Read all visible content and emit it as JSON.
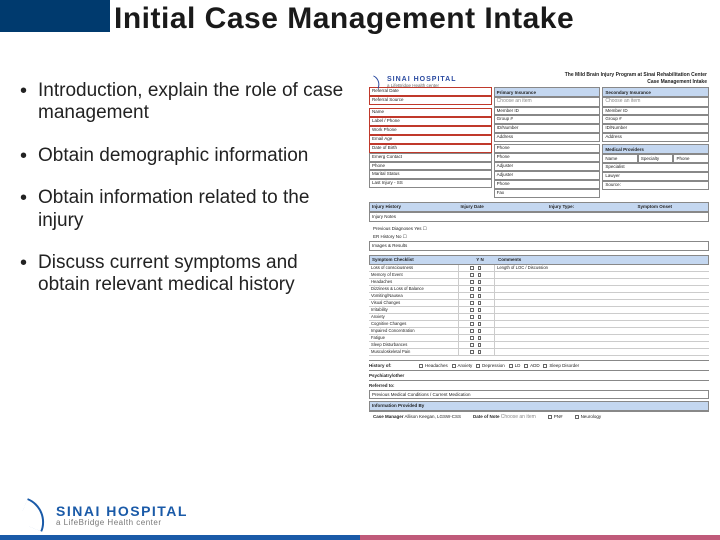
{
  "title": "Initial Case Management Intake",
  "bullets": [
    "Introduction, explain the role of case management",
    "Obtain demographic information",
    "Obtain information related to the injury",
    "Discuss current symptoms and obtain relevant medical history"
  ],
  "form": {
    "logo_name": "SINAI HOSPITAL",
    "logo_sub": "a LifeBridge Health center",
    "program_line": "The Mild Brain Injury Program at Sinai Rehabilitation Center",
    "program_title": "Case Management Intake",
    "left_fields": [
      "Referral Date",
      "Referral Source",
      "Name",
      "Label / Phone",
      "Work Phone",
      "Email                                   Age",
      "Date of Birth",
      "Emerg Contact",
      "Phone",
      "Marital Status",
      "Last Injury - SS"
    ],
    "primary_hdr": "Primary Insurance",
    "secondary_hdr": "Secondary Insurance",
    "ins_items": [
      "Choose an item",
      "Choose an item"
    ],
    "ins_fields": [
      "Member ID",
      "Group #",
      "ID/Number",
      "Address"
    ],
    "providers_hdr": "Medical Providers",
    "prov_cols": [
      "Name",
      "Specialty",
      "Phone"
    ],
    "prov_rows": [
      "Specialist",
      "Lawyer",
      "Source:"
    ],
    "other_fields": [
      "Phone",
      "Phone",
      "Adjuster",
      "Adjuster",
      "Phone",
      "Fax"
    ],
    "injury_bar": [
      "Injury History",
      "Injury Date",
      "Injury Type:",
      "Symptom Onset"
    ],
    "injury_notes": "Injury Notes",
    "loc_label": "Previous Diagnoses   Yes ☐",
    "loc_line2": "ER History                No ☐",
    "loc_line3": "Images & Results",
    "sym_header": [
      "Symptom Checklist",
      "Y    N",
      "Comments"
    ],
    "symptoms": [
      {
        "l": "Loss of consciousness",
        "n": "Length of LOC / Discussion"
      },
      {
        "l": "Memory of Event",
        "n": ""
      },
      {
        "l": "Headaches",
        "n": ""
      },
      {
        "l": "Dizziness & Loss of Balance",
        "n": ""
      },
      {
        "l": "Vomiting/Nausea",
        "n": ""
      },
      {
        "l": "Visual Changes",
        "n": ""
      },
      {
        "l": "Irritability",
        "n": ""
      },
      {
        "l": "Anxiety",
        "n": ""
      },
      {
        "l": "Cognitive Changes",
        "n": ""
      },
      {
        "l": "Impaired Concentration",
        "n": ""
      },
      {
        "l": "Fatigue",
        "n": ""
      },
      {
        "l": "Sleep Disturbances",
        "n": ""
      },
      {
        "l": "Musculoskeletal Pain",
        "n": ""
      }
    ],
    "history_label": "History of:",
    "history_items": [
      "Headaches",
      "Anxiety",
      "Depression",
      "LD",
      "ADD",
      "Sleep Disorder"
    ],
    "psych_label": "Psychiatry/other",
    "referred_label": "Referred to:",
    "prev_label": "Previous Medical Conditions / Current Medication",
    "info_bar": "Information Provided By",
    "footer_fields": {
      "cm": "Case Manager",
      "cm_val": "Allison Keegan, LGSW-CSS",
      "dn": "Date of Note",
      "dn_val": "Choose an item",
      "pn": "PN#",
      "neu": "Neurology"
    }
  },
  "footer_logo": {
    "name": "SINAI HOSPITAL",
    "sub": "a LifeBridge Health center"
  },
  "colors": {
    "brand_blue": "#003a6e",
    "logo_blue": "#1a5aa8",
    "form_header_bg": "#c4d7f0",
    "red_border": "#c0392b"
  }
}
